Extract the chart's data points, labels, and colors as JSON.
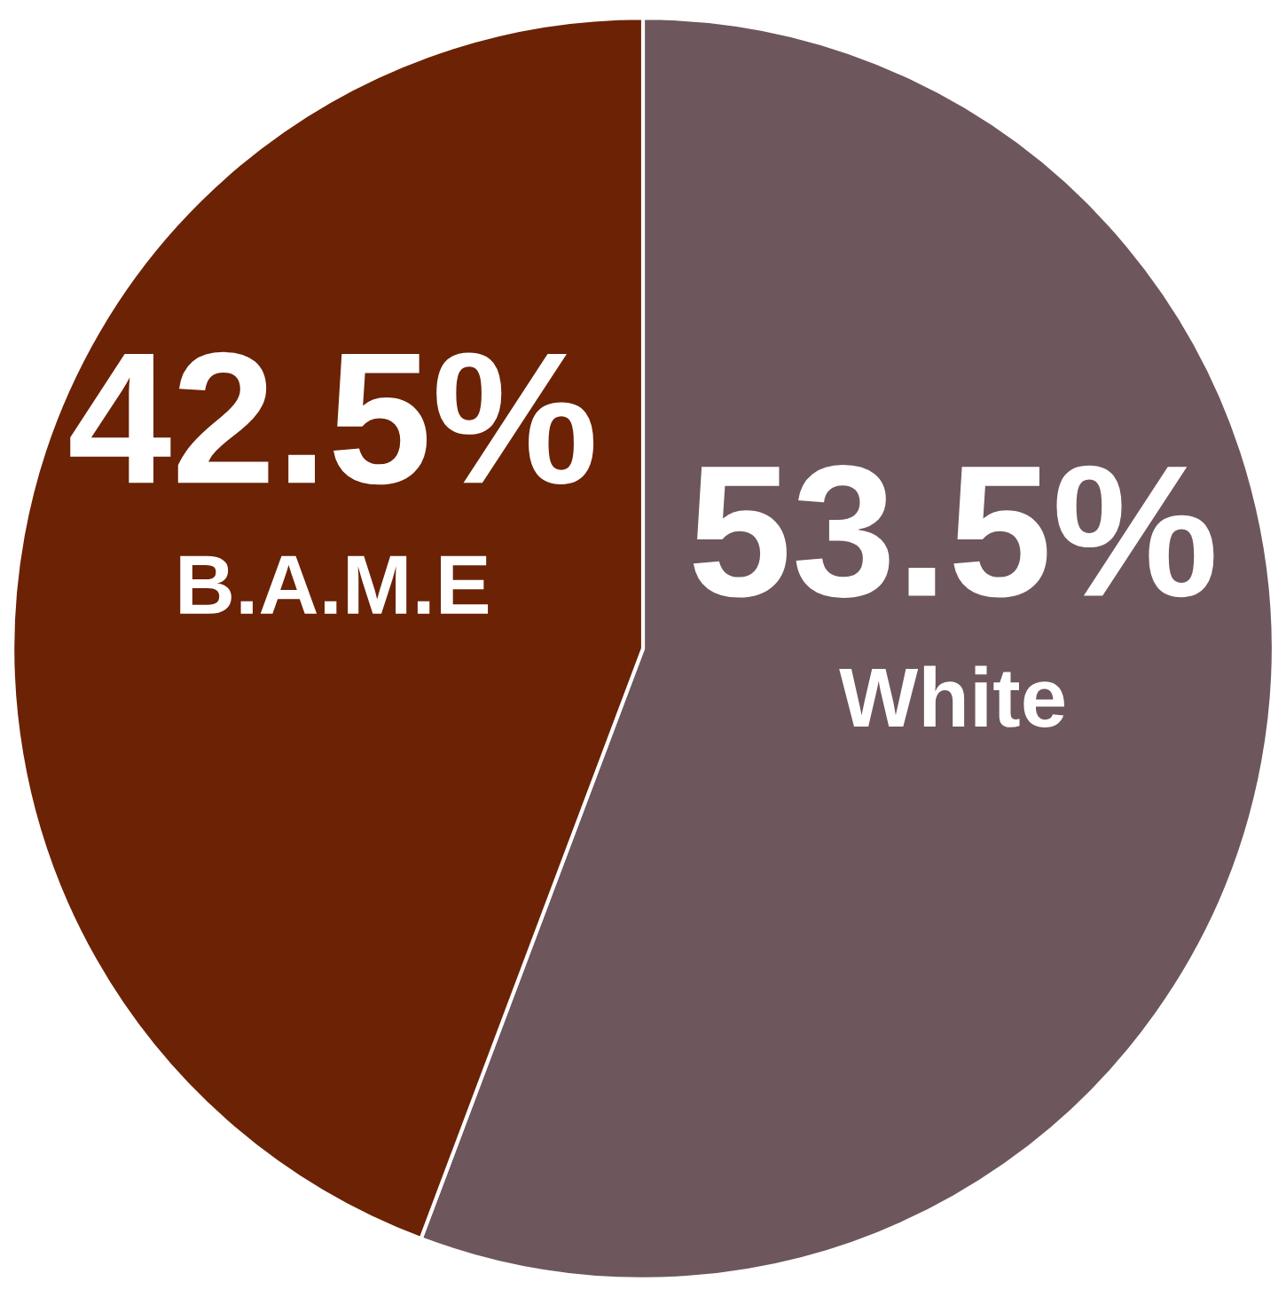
{
  "chart_data": {
    "type": "pie",
    "categories": [
      "White",
      "B.A.M.E"
    ],
    "values": [
      53.5,
      42.5
    ],
    "colors": [
      "#6d565c",
      "#6b2205"
    ],
    "value_labels": [
      "53.5%",
      "42.5%"
    ]
  }
}
